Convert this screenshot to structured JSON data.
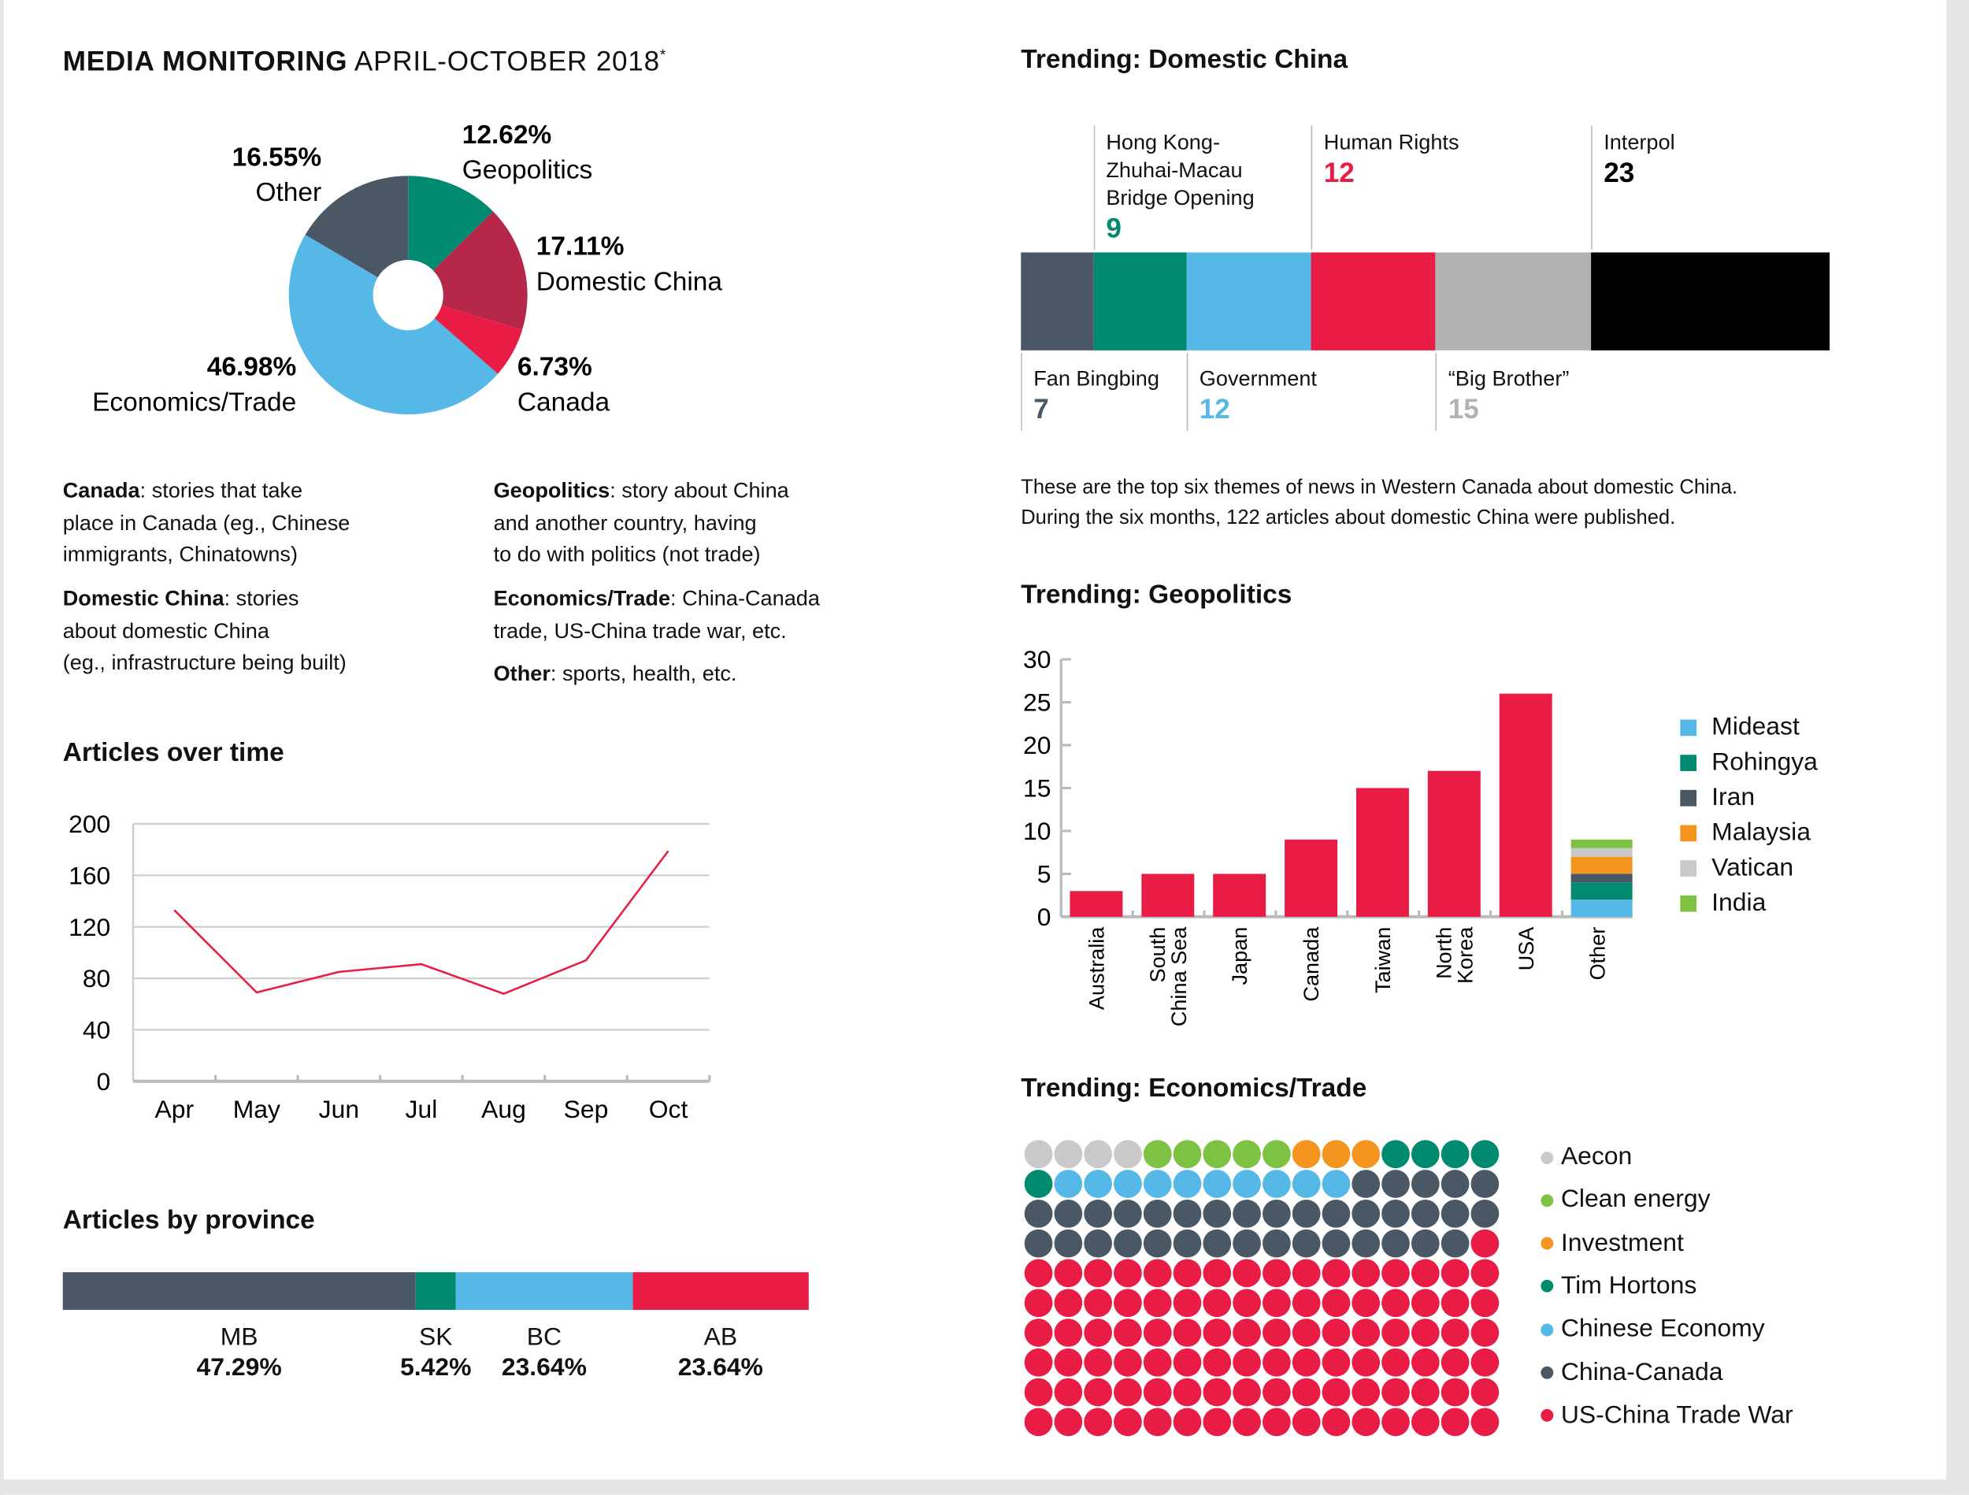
{
  "header": {
    "title_bold": "MEDIA MONITORING",
    "title_light": "APRIL-OCTOBER 2018",
    "asterisk": "*"
  },
  "colors": {
    "red": "#e91c45",
    "darkred": "#b5284a",
    "blue": "#55b8e6",
    "teal": "#008b70",
    "slate": "#4a5866",
    "gray": "#b1b2b4",
    "black": "#000000",
    "orange": "#f4951f",
    "lightgray": "#c9c9c9",
    "green": "#7dc242"
  },
  "chart_data": [
    {
      "type": "pie",
      "title": "Media monitoring by category",
      "slices": [
        {
          "label": "Geopolitics",
          "value": 12.62,
          "display": "12.62%",
          "color": "#008b70"
        },
        {
          "label": "Domestic China",
          "value": 17.11,
          "display": "17.11%",
          "color": "#b5284a"
        },
        {
          "label": "Canada",
          "value": 6.73,
          "display": "6.73%",
          "color": "#e91c45"
        },
        {
          "label": "Economics/Trade",
          "value": 46.98,
          "display": "46.98%",
          "color": "#55b8e6"
        },
        {
          "label": "Other",
          "value": 16.55,
          "display": "16.55%",
          "color": "#4a5866"
        }
      ]
    },
    {
      "type": "line",
      "title": "Articles over time",
      "x": [
        "Apr",
        "May",
        "Jun",
        "Jul",
        "Aug",
        "Sep",
        "Oct"
      ],
      "values": [
        133,
        69,
        85,
        91,
        68,
        94,
        179
      ],
      "yticks": [
        "0",
        "40",
        "80",
        "120",
        "160",
        "200"
      ],
      "ylim": [
        0,
        200
      ],
      "grid": true,
      "color": "#e91c45"
    },
    {
      "type": "bar",
      "title": "Articles by province",
      "orientation": "horizontal-stacked",
      "categories": [
        "MB",
        "SK",
        "BC",
        "AB"
      ],
      "values": [
        47.29,
        5.42,
        23.64,
        23.64
      ],
      "labels": [
        "47.29%",
        "5.42%",
        "23.64%",
        "23.64%"
      ],
      "colors": [
        "#4a5866",
        "#008b70",
        "#55b8e6",
        "#e91c45"
      ]
    },
    {
      "type": "bar",
      "title": "Trending: Domestic China",
      "orientation": "horizontal-stacked",
      "categories": [
        "Fan Bingbing",
        "Hong Kong-Zhuhai-Macau Bridge Opening",
        "Government",
        "Human Rights",
        "“Big Brother”",
        "Interpol"
      ],
      "values": [
        7,
        9,
        12,
        12,
        15,
        23
      ],
      "colors": [
        "#4a5866",
        "#008b70",
        "#55b8e6",
        "#e91c45",
        "#b1b2b4",
        "#000000"
      ]
    },
    {
      "type": "bar",
      "title": "Trending: Geopolitics",
      "categories": [
        "Australia",
        "South China Sea",
        "Japan",
        "Canada",
        "Taiwan",
        "North Korea",
        "USA",
        "Other"
      ],
      "values": [
        3,
        5,
        5,
        9,
        15,
        17,
        26,
        9
      ],
      "ylim": [
        0,
        30
      ],
      "yticks": [
        "0",
        "5",
        "10",
        "15",
        "20",
        "25",
        "30"
      ],
      "other_breakdown": [
        {
          "name": "Mideast",
          "value": 2,
          "color": "#55b8e6"
        },
        {
          "name": "Rohingya",
          "value": 2,
          "color": "#008b70"
        },
        {
          "name": "Iran",
          "value": 1,
          "color": "#4a5866"
        },
        {
          "name": "Malaysia",
          "value": 2,
          "color": "#f4951f"
        },
        {
          "name": "Vatican",
          "value": 1,
          "color": "#c9c9c9"
        },
        {
          "name": "India",
          "value": 1,
          "color": "#7dc242"
        }
      ],
      "legend": "right"
    },
    {
      "type": "waffle",
      "title": "Trending: Economics/Trade",
      "columns": 16,
      "rows": 10,
      "series": [
        {
          "name": "Aecon",
          "value": 4,
          "color": "#c9c9c9"
        },
        {
          "name": "Clean energy",
          "value": 5,
          "color": "#7dc242"
        },
        {
          "name": "Investment",
          "value": 3,
          "color": "#f4951f"
        },
        {
          "name": "Tim Hortons",
          "value": 5,
          "color": "#008b70"
        },
        {
          "name": "Chinese Economy",
          "value": 10,
          "color": "#55b8e6"
        },
        {
          "name": "China-Canada",
          "value": 36,
          "color": "#4a5866"
        },
        {
          "name": "US-China Trade War",
          "value": 97,
          "color": "#e91c45"
        }
      ],
      "legend": "right"
    }
  ],
  "definitions": {
    "canada": {
      "term": "Canada",
      "lines": [
        ": stories that take",
        "place in Canada (eg., Chinese",
        "immigrants, Chinatowns)"
      ]
    },
    "domestic": {
      "term": "Domestic China",
      "lines": [
        ": stories",
        "about domestic China",
        "(eg., infrastructure being built)"
      ]
    },
    "geopolitics": {
      "term": "Geopolitics",
      "lines": [
        ": story about China",
        "and another country, having",
        "to do with politics (not trade)"
      ]
    },
    "economics": {
      "term": "Economics/Trade",
      "lines": [
        ": China-Canada",
        "trade, US-China trade war, etc."
      ]
    },
    "other": {
      "term": "Other",
      "lines": [
        ": sports, health, etc."
      ]
    }
  },
  "domestic_labels": {
    "top": [
      {
        "lines": [
          "Hong Kong-",
          "Zhuhai-Macau",
          "Bridge Opening"
        ],
        "num": "9",
        "color": "#008b70"
      },
      {
        "lines": [
          "Human Rights"
        ],
        "num": "12",
        "color": "#e91c45"
      },
      {
        "lines": [
          "Interpol"
        ],
        "num": "23",
        "color": "#000000"
      }
    ],
    "bottom": [
      {
        "lines": [
          "Fan Bingbing"
        ],
        "num": "7",
        "color": "#4a5866"
      },
      {
        "lines": [
          "Government"
        ],
        "num": "12",
        "color": "#55b8e6"
      },
      {
        "lines": [
          "“Big Brother”"
        ],
        "num": "15",
        "color": "#b1b2b4"
      }
    ],
    "caption": [
      "These are the top six themes of news in Western Canada about domestic China.",
      "During the six months, 122 articles about domestic China were published."
    ]
  }
}
